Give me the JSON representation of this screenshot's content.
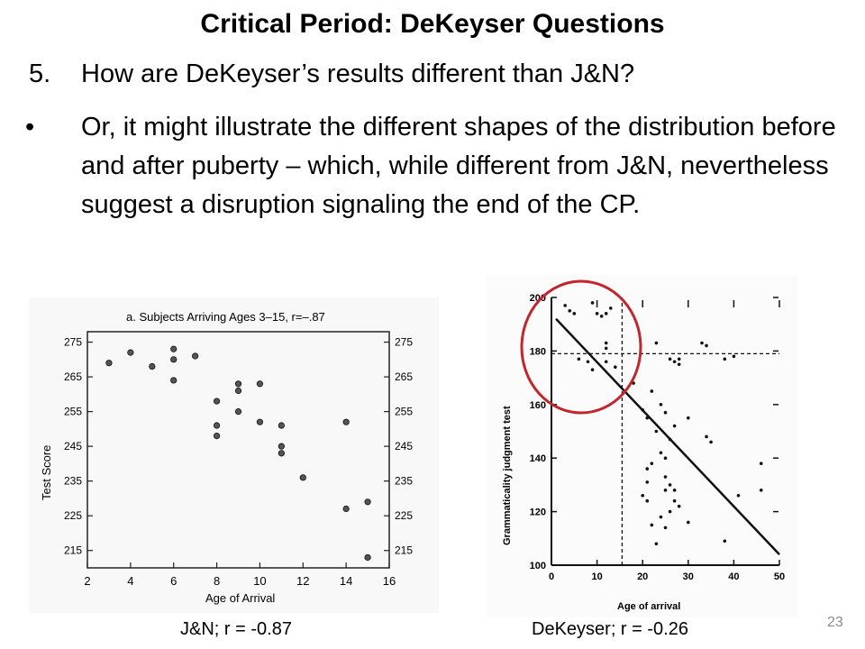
{
  "slide": {
    "title": "Critical Period:  DeKeyser Questions",
    "question_number": "5.",
    "question_text": "How are DeKeyser’s results different than J&N?",
    "bullet_marker": "•",
    "bullet_text": "Or, it might illustrate the different shapes of the distribution before and after puberty – which, while different from J&N, nevertheless suggest a disruption signaling the end of the CP.",
    "caption_left": "J&N; r = -0.87",
    "caption_right": "DeKeyser; r = -0.26",
    "page_number": "23"
  },
  "chart_data": [
    {
      "type": "scatter",
      "title": "a. Subjects Arriving Ages 3–15, r=–.87",
      "xlabel": "Age of Arrival",
      "ylabel": "Test Score",
      "xlim": [
        2,
        16
      ],
      "ylim": [
        210,
        278
      ],
      "x_ticks": [
        "2",
        "4",
        "6",
        "8",
        "10",
        "12",
        "14",
        "16"
      ],
      "y_ticks": [
        "275",
        "265",
        "255",
        "245",
        "235",
        "225",
        "215"
      ],
      "grid": false,
      "points": [
        {
          "x": 3,
          "y": 269
        },
        {
          "x": 4,
          "y": 272
        },
        {
          "x": 5,
          "y": 268
        },
        {
          "x": 6,
          "y": 273
        },
        {
          "x": 6,
          "y": 270
        },
        {
          "x": 6,
          "y": 264
        },
        {
          "x": 7,
          "y": 271
        },
        {
          "x": 8,
          "y": 258
        },
        {
          "x": 8,
          "y": 251
        },
        {
          "x": 8,
          "y": 248
        },
        {
          "x": 9,
          "y": 263
        },
        {
          "x": 9,
          "y": 261
        },
        {
          "x": 9,
          "y": 255
        },
        {
          "x": 10,
          "y": 263
        },
        {
          "x": 10,
          "y": 252
        },
        {
          "x": 11,
          "y": 251
        },
        {
          "x": 11,
          "y": 245
        },
        {
          "x": 11,
          "y": 243
        },
        {
          "x": 12,
          "y": 236
        },
        {
          "x": 14,
          "y": 252
        },
        {
          "x": 14,
          "y": 227
        },
        {
          "x": 15,
          "y": 229
        },
        {
          "x": 15,
          "y": 213
        }
      ]
    },
    {
      "type": "scatter",
      "xlabel": "Age of arrival",
      "ylabel": "Grammaticality judgment test",
      "xlim": [
        0,
        50
      ],
      "ylim": [
        100,
        200
      ],
      "x_ticks": [
        "0",
        "10",
        "20",
        "30",
        "40",
        "50"
      ],
      "y_ticks": [
        "100",
        "120",
        "140",
        "160",
        "180",
        "200"
      ],
      "grid": false,
      "annotations": {
        "vertical_dashed_x": 15.5,
        "horizontal_dashed_y": 179,
        "highlight_circle": "top-left",
        "highlight_color": "#c0262c"
      },
      "regression_line": {
        "x1": 1,
        "y1": 192,
        "x2": 50,
        "y2": 104
      },
      "points": [
        {
          "x": 3,
          "y": 197
        },
        {
          "x": 4,
          "y": 195
        },
        {
          "x": 5,
          "y": 194
        },
        {
          "x": 9,
          "y": 198
        },
        {
          "x": 10,
          "y": 194
        },
        {
          "x": 11,
          "y": 193
        },
        {
          "x": 12,
          "y": 194
        },
        {
          "x": 13,
          "y": 196
        },
        {
          "x": 12,
          "y": 183
        },
        {
          "x": 12,
          "y": 181
        },
        {
          "x": 6,
          "y": 177
        },
        {
          "x": 8,
          "y": 176
        },
        {
          "x": 9,
          "y": 173
        },
        {
          "x": 12,
          "y": 176
        },
        {
          "x": 14,
          "y": 174
        },
        {
          "x": 18,
          "y": 168
        },
        {
          "x": 22,
          "y": 165
        },
        {
          "x": 23,
          "y": 183
        },
        {
          "x": 26,
          "y": 177
        },
        {
          "x": 27,
          "y": 176
        },
        {
          "x": 28,
          "y": 177
        },
        {
          "x": 28,
          "y": 175
        },
        {
          "x": 33,
          "y": 183
        },
        {
          "x": 34,
          "y": 182
        },
        {
          "x": 38,
          "y": 177
        },
        {
          "x": 40,
          "y": 178
        },
        {
          "x": 20,
          "y": 158
        },
        {
          "x": 21,
          "y": 155
        },
        {
          "x": 24,
          "y": 160
        },
        {
          "x": 25,
          "y": 157
        },
        {
          "x": 23,
          "y": 150
        },
        {
          "x": 26,
          "y": 147
        },
        {
          "x": 27,
          "y": 152
        },
        {
          "x": 30,
          "y": 155
        },
        {
          "x": 34,
          "y": 148
        },
        {
          "x": 35,
          "y": 146
        },
        {
          "x": 24,
          "y": 142
        },
        {
          "x": 25,
          "y": 140
        },
        {
          "x": 22,
          "y": 138
        },
        {
          "x": 21,
          "y": 136
        },
        {
          "x": 21,
          "y": 131
        },
        {
          "x": 20,
          "y": 126
        },
        {
          "x": 21,
          "y": 124
        },
        {
          "x": 25,
          "y": 133
        },
        {
          "x": 26,
          "y": 130
        },
        {
          "x": 27,
          "y": 128
        },
        {
          "x": 25,
          "y": 128
        },
        {
          "x": 27,
          "y": 124
        },
        {
          "x": 26,
          "y": 120
        },
        {
          "x": 28,
          "y": 122
        },
        {
          "x": 24,
          "y": 118
        },
        {
          "x": 22,
          "y": 115
        },
        {
          "x": 25,
          "y": 114
        },
        {
          "x": 23,
          "y": 108
        },
        {
          "x": 30,
          "y": 116
        },
        {
          "x": 41,
          "y": 126
        },
        {
          "x": 38,
          "y": 109
        },
        {
          "x": 46,
          "y": 128
        },
        {
          "x": 46,
          "y": 138
        }
      ]
    }
  ]
}
